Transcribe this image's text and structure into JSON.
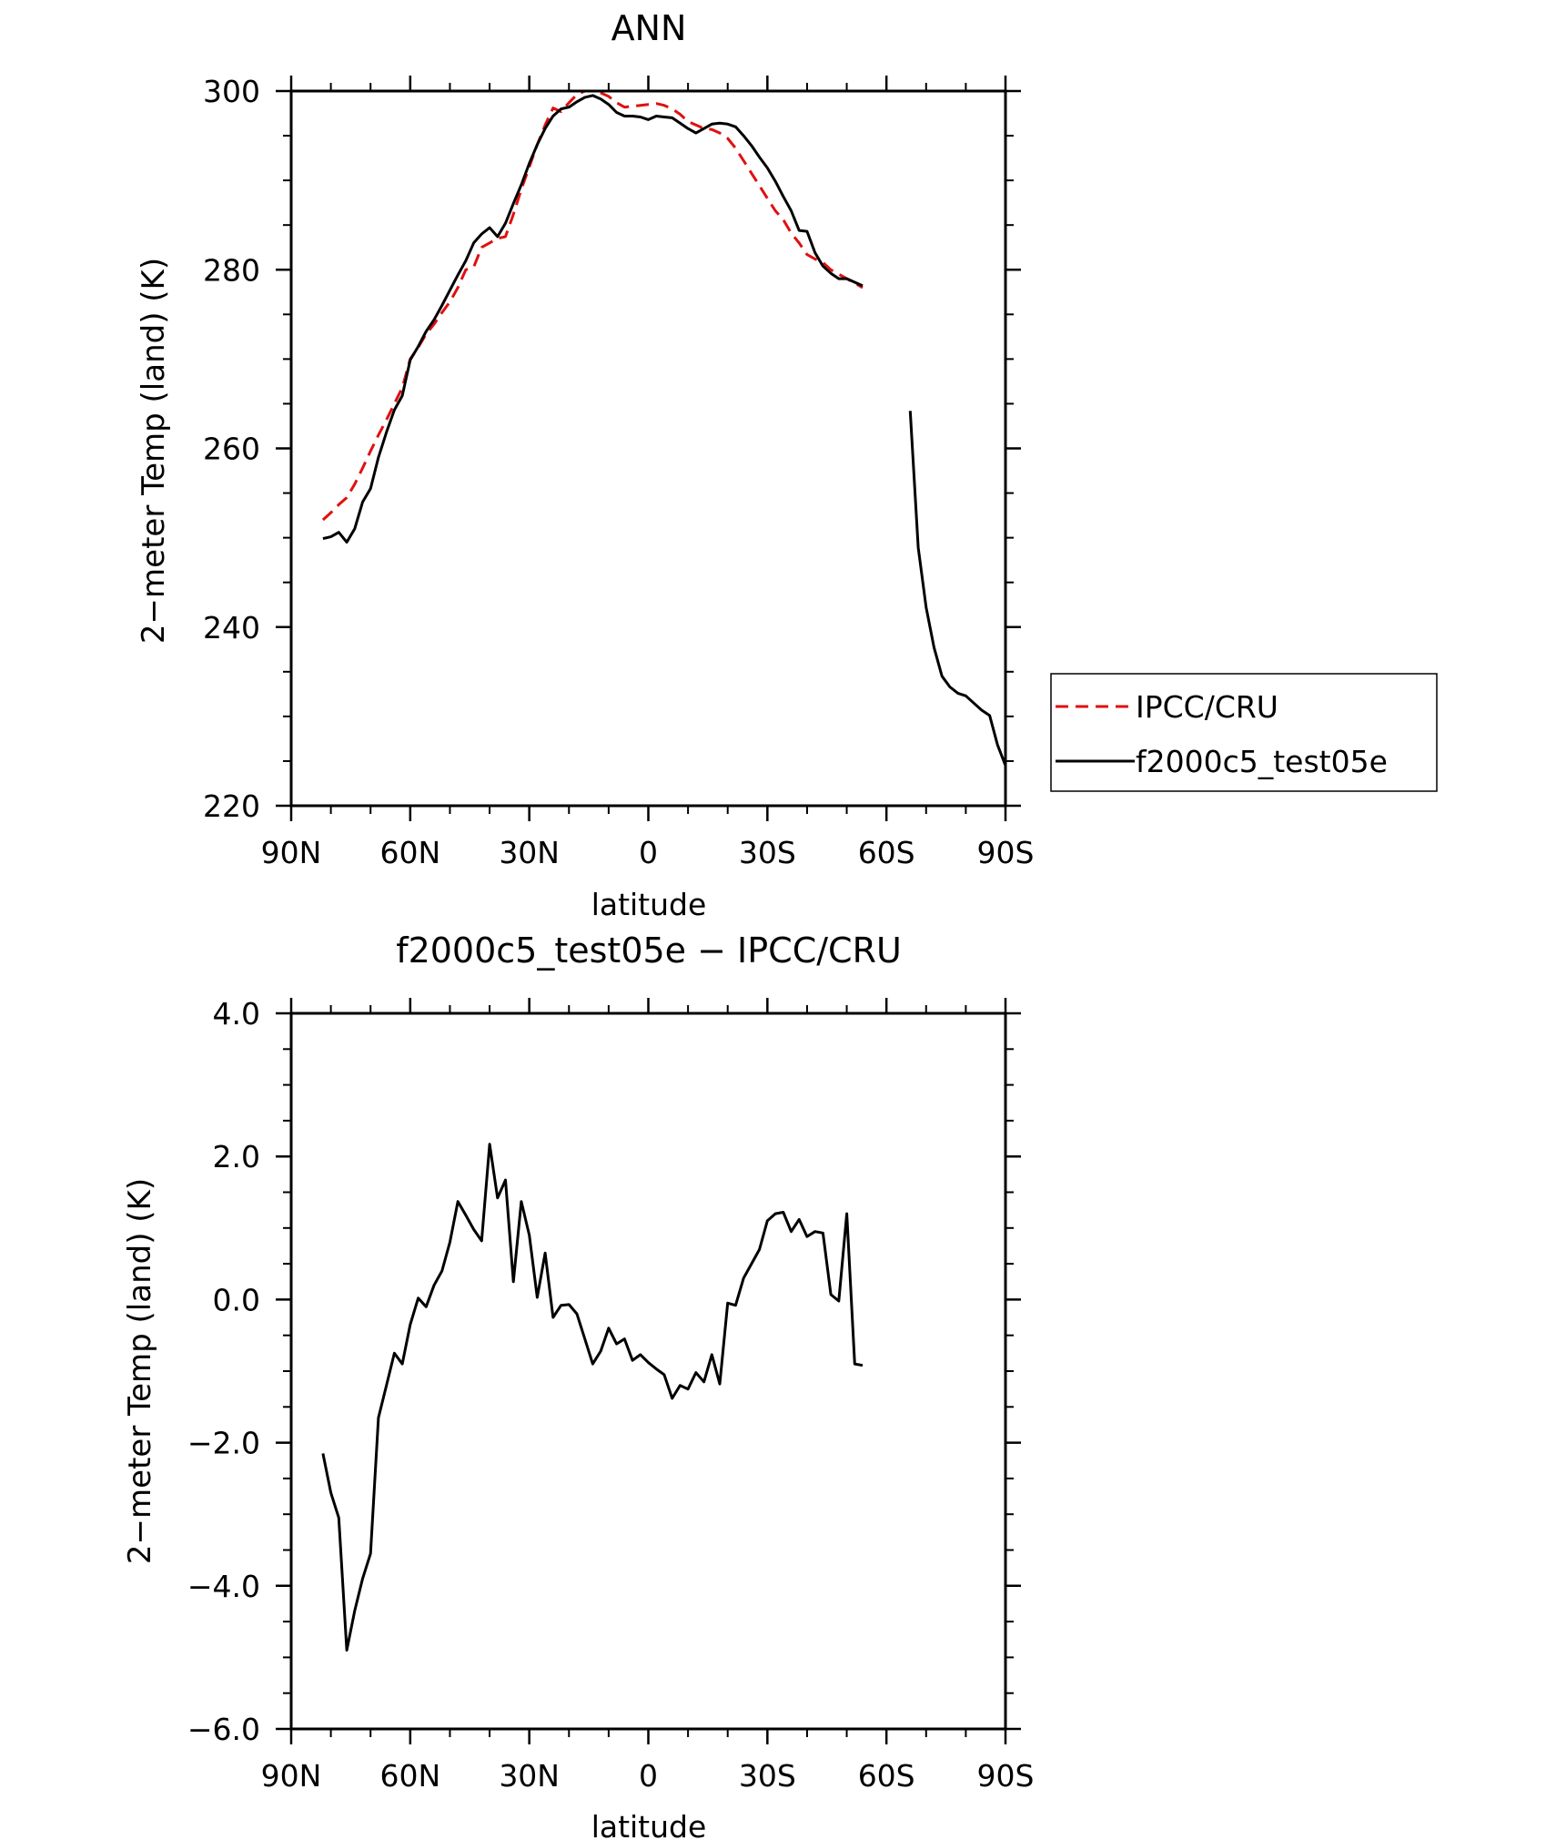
{
  "chart_data": [
    {
      "type": "line",
      "title": "ANN",
      "xlabel": "latitude",
      "ylabel": "2−meter Temp (land) (K)",
      "xlim": [
        90,
        -90
      ],
      "ylim": [
        220,
        300
      ],
      "x_tick_values": [
        90,
        60,
        30,
        0,
        -30,
        -60,
        -90
      ],
      "x_tick_labels": [
        "90N",
        "60N",
        "30N",
        "0",
        "30S",
        "60S",
        "90S"
      ],
      "y_tick_values": [
        220,
        240,
        260,
        280,
        300
      ],
      "y_tick_labels": [
        "220",
        "240",
        "260",
        "280",
        "300"
      ],
      "grid": false,
      "legend_position": "right",
      "series": [
        {
          "name": "IPCC/CRU",
          "color": "#e01010",
          "dash": "dashed",
          "x": [
            82,
            80,
            78,
            76,
            74,
            72,
            70,
            68,
            66,
            64,
            62,
            60,
            58,
            56,
            54,
            52,
            50,
            48,
            46,
            44,
            42,
            40,
            38,
            36,
            34,
            32,
            30,
            28,
            26,
            24,
            22,
            20,
            18,
            16,
            14,
            12,
            10,
            8,
            6,
            4,
            2,
            0,
            -2,
            -4,
            -6,
            -8,
            -10,
            -12,
            -14,
            -16,
            -18,
            -20,
            -22,
            -24,
            -26,
            -28,
            -30,
            -32,
            -34,
            -36,
            -38,
            -40,
            -42,
            -44,
            -46,
            -48,
            -50,
            -52,
            -54
          ],
          "y": [
            252,
            252.8,
            253.7,
            254.5,
            256,
            257.8,
            259.7,
            261.5,
            263.2,
            265,
            266.8,
            270,
            271.3,
            272.8,
            273.9,
            275.2,
            276.4,
            278,
            280,
            280.3,
            282.5,
            283,
            283.5,
            283.7,
            286.2,
            289,
            291.5,
            294,
            296.2,
            298.1,
            297.7,
            298.7,
            299.6,
            300,
            300,
            299.8,
            299.4,
            298.7,
            298.2,
            298.3,
            298.4,
            298.5,
            298.6,
            298.4,
            298,
            297.4,
            296.6,
            296.2,
            295.8,
            295.7,
            295.3,
            294.7,
            293.6,
            292.2,
            290.8,
            289.4,
            288,
            286.6,
            285.6,
            284.1,
            283,
            281.7,
            281.2,
            280.8,
            280,
            279.5,
            279,
            278.5,
            278
          ]
        },
        {
          "name": "f2000c5_test05e",
          "color": "#000000",
          "dash": "solid",
          "x": [
            82,
            80,
            78,
            76,
            74,
            72,
            70,
            68,
            66,
            64,
            62,
            60,
            58,
            56,
            54,
            52,
            50,
            48,
            46,
            44,
            42,
            40,
            38,
            36,
            34,
            32,
            30,
            28,
            26,
            24,
            22,
            20,
            18,
            16,
            14,
            12,
            10,
            8,
            6,
            4,
            2,
            0,
            -2,
            -4,
            -6,
            -8,
            -10,
            -12,
            -14,
            -16,
            -18,
            -20,
            -22,
            -24,
            -26,
            -28,
            -30,
            -32,
            -34,
            -36,
            -38,
            -40,
            -42,
            -44,
            -46,
            -48,
            -50,
            -52,
            -54,
            null,
            -66,
            -68,
            -70,
            -72,
            -74,
            -76,
            -78,
            -80,
            -82,
            -84,
            -86,
            -88,
            -90
          ],
          "y": [
            249.9,
            250.1,
            250.6,
            249.5,
            251,
            254,
            255.5,
            259,
            261.8,
            264.3,
            265.9,
            269.9,
            271.4,
            273.1,
            274.4,
            276,
            277.7,
            279.4,
            281,
            283,
            284,
            284.7,
            283.7,
            285.2,
            287.4,
            289.5,
            291.9,
            294,
            295.8,
            297.2,
            298,
            298.2,
            298.8,
            299.3,
            299.5,
            299.1,
            298.5,
            297.6,
            297.2,
            297.2,
            297.1,
            296.8,
            297.2,
            297.1,
            297,
            296.4,
            295.8,
            295.3,
            295.8,
            296.3,
            296.4,
            296.3,
            296,
            295,
            293.9,
            292.6,
            291.4,
            289.9,
            288.2,
            286.6,
            284.4,
            284.3,
            281.9,
            280.4,
            279.6,
            279,
            279,
            278.6,
            278.2,
            null,
            264.2,
            248.9,
            242.2,
            237.7,
            234.5,
            233.3,
            232.6,
            232.3,
            231.5,
            230.7,
            230.1,
            226.8,
            224.5
          ]
        }
      ]
    },
    {
      "type": "line",
      "title": "f2000c5_test05e − IPCC/CRU",
      "xlabel": "latitude",
      "ylabel": "2−meter Temp (land) (K)",
      "xlim": [
        90,
        -90
      ],
      "ylim": [
        -6,
        4
      ],
      "x_tick_values": [
        90,
        60,
        30,
        0,
        -30,
        -60,
        -90
      ],
      "x_tick_labels": [
        "90N",
        "60N",
        "30N",
        "0",
        "30S",
        "60S",
        "90S"
      ],
      "y_tick_values": [
        -6,
        -4,
        -2,
        0,
        2,
        4
      ],
      "y_tick_labels": [
        "−6.0",
        "−4.0",
        "−2.0",
        "0.0",
        "2.0",
        "4.0"
      ],
      "grid": false,
      "series": [
        {
          "color": "#000000",
          "dash": "solid",
          "x": [
            82,
            80,
            78,
            76,
            74,
            72,
            70,
            68,
            66,
            64,
            62,
            60,
            58,
            56,
            54,
            52,
            50,
            48,
            46,
            44,
            42,
            40,
            38,
            36,
            34,
            32,
            30,
            28,
            26,
            24,
            22,
            20,
            18,
            16,
            14,
            12,
            10,
            8,
            6,
            4,
            2,
            0,
            -2,
            -4,
            -6,
            -8,
            -10,
            -12,
            -14,
            -16,
            -18,
            -20,
            -22,
            -24,
            -26,
            -28,
            -30,
            -32,
            -34,
            -36,
            -38,
            -40,
            -42,
            -44,
            -46,
            -48,
            -50,
            -52,
            -54
          ],
          "y": [
            -2.15,
            -2.7,
            -3.05,
            -4.9,
            -4.35,
            -3.9,
            -3.55,
            -1.65,
            -1.2,
            -0.75,
            -0.9,
            -0.35,
            0.02,
            -0.1,
            0.2,
            0.4,
            0.8,
            1.37,
            1.18,
            0.98,
            0.82,
            2.17,
            1.42,
            1.67,
            0.25,
            1.37,
            0.9,
            0.03,
            0.65,
            -0.25,
            -0.08,
            -0.07,
            -0.2,
            -0.55,
            -0.9,
            -0.72,
            -0.4,
            -0.62,
            -0.55,
            -0.85,
            -0.77,
            -0.88,
            -0.97,
            -1.05,
            -1.38,
            -1.2,
            -1.25,
            -1.02,
            -1.15,
            -0.77,
            -1.18,
            -0.05,
            -0.08,
            0.3,
            0.5,
            0.7,
            1.1,
            1.2,
            1.22,
            0.95,
            1.12,
            0.88,
            0.95,
            0.93,
            0.07,
            -0.02,
            1.2,
            -0.9,
            -0.92
          ]
        }
      ]
    }
  ]
}
